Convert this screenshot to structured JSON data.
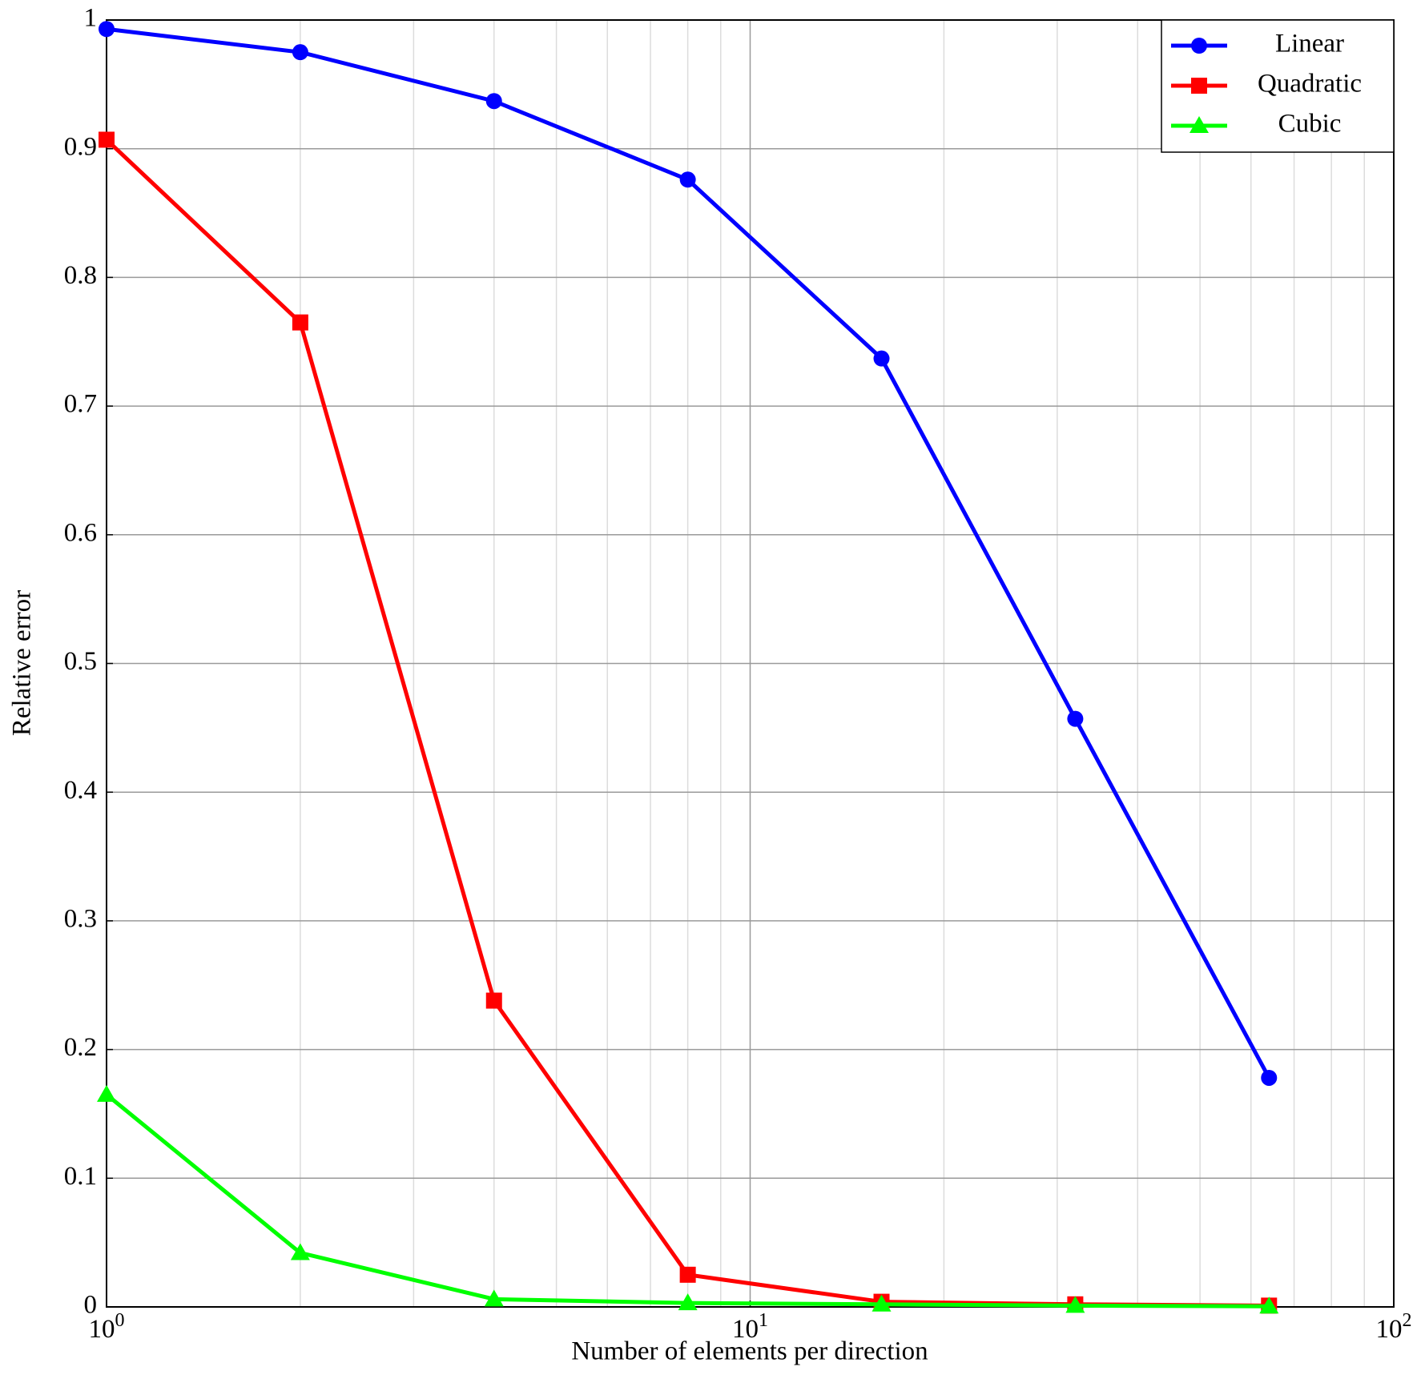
{
  "chart_data": {
    "type": "line",
    "x_label": "Number of elements per direction",
    "y_label": "Relative error",
    "x": [
      1,
      2,
      4,
      8,
      16,
      32,
      64
    ],
    "series": [
      {
        "name": "Linear",
        "color": "#0000ff",
        "marker": "circle",
        "values": [
          0.993,
          0.975,
          0.937,
          0.876,
          0.737,
          0.457,
          0.178
        ]
      },
      {
        "name": "Quadratic",
        "color": "#ff0000",
        "marker": "square",
        "values": [
          0.907,
          0.765,
          0.238,
          0.025,
          0.004,
          0.002,
          0.001
        ]
      },
      {
        "name": "Cubic",
        "color": "#00ff00",
        "marker": "triangle",
        "values": [
          0.165,
          0.042,
          0.006,
          0.003,
          0.002,
          0.001,
          0.0005
        ]
      }
    ],
    "xscale": "log",
    "xlim": [
      1,
      100
    ],
    "xticks": [
      {
        "value": 1,
        "label": "10^0"
      },
      {
        "value": 10,
        "label": "10^1"
      },
      {
        "value": 100,
        "label": "10^2"
      }
    ],
    "ylim": [
      0,
      1
    ],
    "yticks": [
      0,
      0.1,
      0.2,
      0.3,
      0.4,
      0.5,
      0.6,
      0.7,
      0.8,
      0.9,
      1
    ],
    "grid": true,
    "minor_grid": true,
    "legend": "upper right"
  }
}
